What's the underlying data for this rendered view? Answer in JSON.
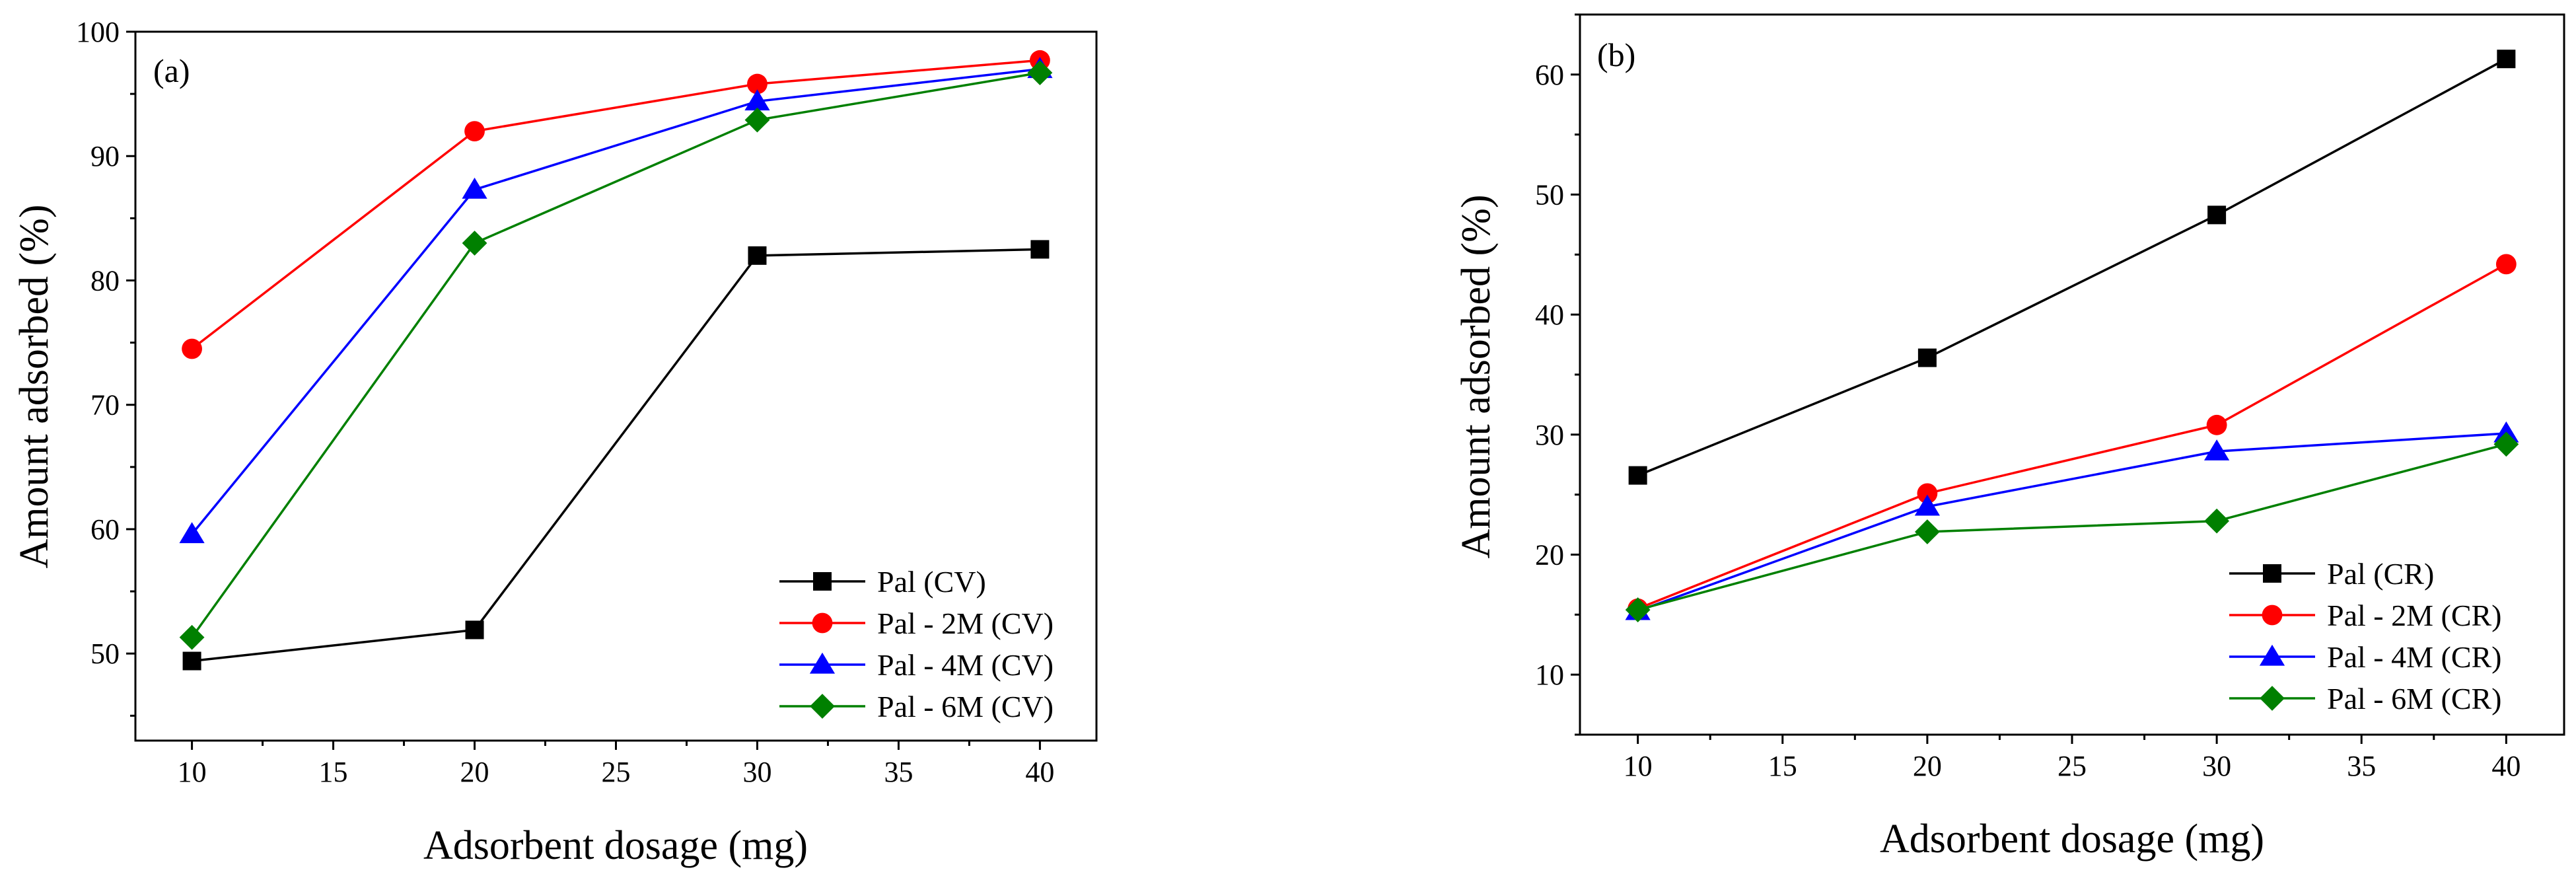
{
  "chart_data": [
    {
      "type": "line",
      "panel_label": "(a)",
      "xlabel": "Adsorbent dosage (mg)",
      "ylabel": "Amount adsorbed (%)",
      "xlim": [
        8,
        42
      ],
      "ylim": [
        43,
        100
      ],
      "xticks": [
        10,
        15,
        20,
        25,
        30,
        35,
        40
      ],
      "yticks": [
        50,
        60,
        70,
        80,
        90,
        100
      ],
      "x": [
        10,
        20,
        30,
        40
      ],
      "legend_position": "bottom-right",
      "series": [
        {
          "name": "Pal (CV)",
          "marker": "square",
          "color": "#000000",
          "values": [
            49.4,
            51.9,
            82.0,
            82.5
          ]
        },
        {
          "name": "Pal - 2M (CV)",
          "marker": "circle",
          "color": "#ff0000",
          "values": [
            74.5,
            92.0,
            95.8,
            97.7
          ]
        },
        {
          "name": "Pal - 4M (CV)",
          "marker": "triangle",
          "color": "#0000ff",
          "values": [
            59.6,
            87.3,
            94.4,
            97.0
          ]
        },
        {
          "name": "Pal - 6M (CV)",
          "marker": "diamond",
          "color": "#008000",
          "values": [
            51.3,
            83.0,
            92.9,
            96.7
          ]
        }
      ]
    },
    {
      "type": "line",
      "panel_label": "(b)",
      "xlabel": "Adsorbent dosage (mg)",
      "ylabel": "Amount adsorbed (%)",
      "xlim": [
        8,
        42
      ],
      "ylim": [
        5,
        65
      ],
      "xticks": [
        10,
        15,
        20,
        25,
        30,
        35,
        40
      ],
      "yticks": [
        10,
        20,
        30,
        40,
        50,
        60
      ],
      "x": [
        10,
        20,
        30,
        40
      ],
      "legend_position": "bottom-right",
      "series": [
        {
          "name": "Pal (CR)",
          "marker": "square",
          "color": "#000000",
          "values": [
            26.6,
            36.4,
            48.3,
            61.3
          ]
        },
        {
          "name": "Pal - 2M (CR)",
          "marker": "circle",
          "color": "#ff0000",
          "values": [
            15.5,
            25.1,
            30.8,
            44.2
          ]
        },
        {
          "name": "Pal - 4M (CR)",
          "marker": "triangle",
          "color": "#0000ff",
          "values": [
            15.3,
            24.0,
            28.6,
            30.1
          ]
        },
        {
          "name": "Pal - 6M (CR)",
          "marker": "diamond",
          "color": "#008000",
          "values": [
            15.4,
            21.9,
            22.8,
            29.2
          ]
        }
      ]
    }
  ]
}
